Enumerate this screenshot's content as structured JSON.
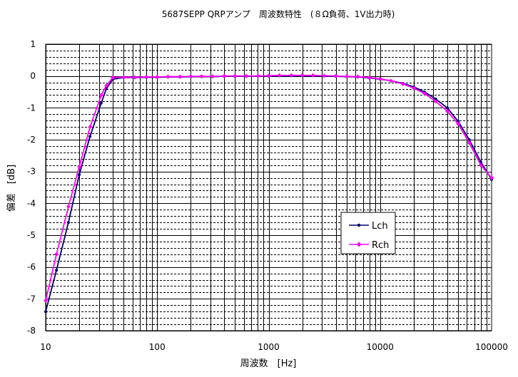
{
  "chart_data": {
    "type": "line",
    "title": "5687SEPP QRPアンプ　周波数特性　(８Ω負荷、1V出力時)",
    "xlabel": "周波数　[Hz]",
    "ylabel": "偏差　[dB]",
    "xscale": "log",
    "xlim": [
      10,
      100000
    ],
    "ylim": [
      -8,
      1
    ],
    "x_tick_labels": [
      "10",
      "100",
      "1000",
      "10000",
      "100000"
    ],
    "y_tick_labels": [
      "1",
      "0",
      "-1",
      "-2",
      "-3",
      "-4",
      "-5",
      "-6",
      "-7",
      "-8"
    ],
    "grid": true,
    "legend_position": "lower-center-right",
    "series": [
      {
        "name": "Lch",
        "color": "#000066",
        "marker": "circle",
        "x": [
          10,
          12.5,
          16,
          20,
          25,
          31.5,
          35,
          40,
          50,
          63,
          80,
          100,
          125,
          160,
          200,
          250,
          315,
          400,
          500,
          630,
          800,
          1000,
          1250,
          1600,
          2000,
          2500,
          3150,
          4000,
          5000,
          6300,
          8000,
          10000,
          12500,
          16000,
          20000,
          25000,
          31500,
          40000,
          50000,
          63000,
          80000,
          100000
        ],
        "y": [
          -7.4,
          -6.1,
          -4.6,
          -3.1,
          -1.9,
          -0.85,
          -0.4,
          -0.1,
          -0.05,
          -0.05,
          -0.04,
          -0.04,
          -0.03,
          -0.03,
          -0.02,
          -0.02,
          -0.02,
          -0.01,
          -0.01,
          -0.01,
          0.0,
          0.0,
          0.01,
          0.01,
          0.01,
          0.01,
          0.0,
          -0.01,
          -0.02,
          -0.03,
          -0.06,
          -0.1,
          -0.15,
          -0.23,
          -0.34,
          -0.5,
          -0.72,
          -1.0,
          -1.42,
          -2.0,
          -2.7,
          -3.25
        ]
      },
      {
        "name": "Rch",
        "color": "#ff00ff",
        "marker": "diamond",
        "x": [
          10,
          12.5,
          16,
          20,
          25,
          31.5,
          35,
          40,
          50,
          63,
          80,
          100,
          125,
          160,
          200,
          250,
          315,
          400,
          500,
          630,
          800,
          1000,
          1250,
          1600,
          2000,
          2500,
          3150,
          4000,
          5000,
          6300,
          8000,
          10000,
          12500,
          16000,
          20000,
          25000,
          31500,
          40000,
          50000,
          63000,
          80000,
          100000
        ],
        "y": [
          -7.05,
          -5.6,
          -4.1,
          -2.85,
          -1.6,
          -0.6,
          -0.3,
          -0.05,
          -0.04,
          -0.04,
          -0.03,
          -0.03,
          -0.02,
          -0.02,
          -0.01,
          -0.01,
          -0.01,
          0.0,
          0.0,
          0.0,
          0.0,
          0.01,
          0.02,
          0.02,
          0.02,
          0.02,
          0.01,
          0.0,
          -0.01,
          -0.02,
          -0.05,
          -0.09,
          -0.15,
          -0.25,
          -0.38,
          -0.55,
          -0.8,
          -1.1,
          -1.5,
          -2.1,
          -2.8,
          -3.2
        ]
      }
    ]
  }
}
